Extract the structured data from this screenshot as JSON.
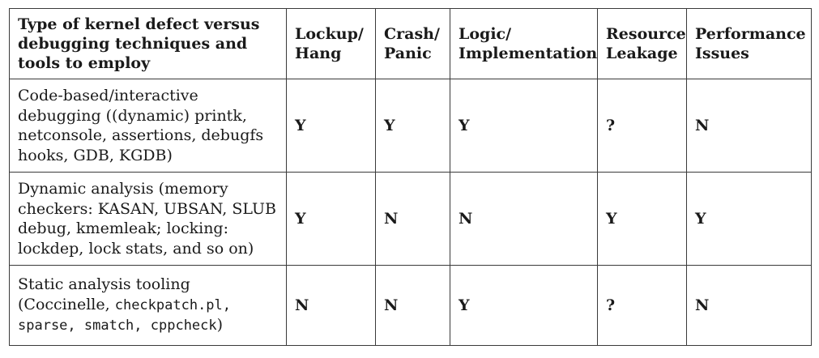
{
  "table": {
    "headers": [
      "Type of kernel defect versus debugging techniques and tools to employ",
      "Lockup/ Hang",
      "Crash/ Panic",
      "Logic/ Implementation",
      "Resource Leakage",
      "Performance Issues"
    ],
    "rows": [
      {
        "technique_parts": [
          {
            "text": "Code-based/interactive debugging ((dynamic) printk, netconsole, assertions, debugfs hooks, GDB, KGDB)"
          }
        ],
        "values": [
          "Y",
          "Y",
          "Y",
          "?",
          "N"
        ]
      },
      {
        "technique_parts": [
          {
            "text": "Dynamic analysis (memory checkers: KASAN, UBSAN, SLUB debug, kmemleak; locking: lockdep, lock stats, and so on)"
          }
        ],
        "values": [
          "Y",
          "N",
          "N",
          "Y",
          "Y"
        ]
      },
      {
        "technique_parts": [
          {
            "text": "Static analysis tooling (Coccinelle, "
          },
          {
            "text": "checkpatch.pl, sparse, smatch, cppcheck"
          },
          {
            "text": ")"
          }
        ],
        "values": [
          "N",
          "N",
          "Y",
          "?",
          "N"
        ]
      }
    ]
  }
}
